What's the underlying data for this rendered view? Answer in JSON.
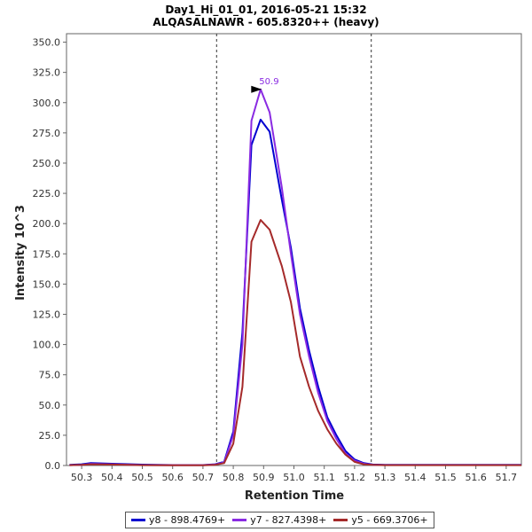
{
  "chart_data": {
    "type": "line",
    "title": "Day1_Hi_01_01, 2016-05-21 15:32",
    "subtitle": "ALQASALNAWR - 605.8320++ (heavy)",
    "xlabel": "Retention Time",
    "ylabel": "Intensity 10^3",
    "xlim": [
      50.25,
      51.75
    ],
    "ylim": [
      0,
      357
    ],
    "x_ticks": [
      "50.3",
      "50.4",
      "50.5",
      "50.6",
      "50.7",
      "50.8",
      "50.9",
      "51.0",
      "51.1",
      "51.2",
      "51.3",
      "51.4",
      "51.5",
      "51.6",
      "51.7"
    ],
    "y_ticks": [
      "0.0",
      "25.0",
      "50.0",
      "75.0",
      "100.0",
      "125.0",
      "150.0",
      "175.0",
      "200.0",
      "225.0",
      "250.0",
      "275.0",
      "300.0",
      "325.0",
      "350.0"
    ],
    "grid": false,
    "legend_position": "bottom",
    "boundaries": [
      50.745,
      51.255
    ],
    "peak_annotation": {
      "x": 50.9,
      "y": 311,
      "label": "50.9",
      "color": "#8a2be2"
    },
    "series": [
      {
        "name": "y8 - 898.4769+",
        "color": "#0000d0",
        "points": [
          [
            50.26,
            0.5
          ],
          [
            50.3,
            1
          ],
          [
            50.33,
            2
          ],
          [
            50.4,
            1.5
          ],
          [
            50.5,
            0.7
          ],
          [
            50.6,
            0.4
          ],
          [
            50.7,
            0.4
          ],
          [
            50.74,
            1
          ],
          [
            50.77,
            3
          ],
          [
            50.8,
            28
          ],
          [
            50.83,
            110
          ],
          [
            50.86,
            265
          ],
          [
            50.89,
            286
          ],
          [
            50.92,
            276
          ],
          [
            50.96,
            220
          ],
          [
            50.99,
            180
          ],
          [
            51.02,
            130
          ],
          [
            51.05,
            95
          ],
          [
            51.08,
            65
          ],
          [
            51.11,
            40
          ],
          [
            51.14,
            25
          ],
          [
            51.17,
            12
          ],
          [
            51.2,
            5
          ],
          [
            51.23,
            2
          ],
          [
            51.26,
            0.8
          ],
          [
            51.3,
            0.5
          ],
          [
            51.4,
            0.5
          ],
          [
            51.5,
            0.5
          ],
          [
            51.6,
            0.5
          ],
          [
            51.75,
            0.5
          ]
        ]
      },
      {
        "name": "y7 - 827.4398+",
        "color": "#8a2be2",
        "points": [
          [
            50.26,
            0.3
          ],
          [
            50.3,
            0.6
          ],
          [
            50.33,
            1.4
          ],
          [
            50.4,
            1
          ],
          [
            50.5,
            0.4
          ],
          [
            50.6,
            0.3
          ],
          [
            50.7,
            0.3
          ],
          [
            50.74,
            0.8
          ],
          [
            50.77,
            2.5
          ],
          [
            50.8,
            25
          ],
          [
            50.83,
            100
          ],
          [
            50.86,
            285
          ],
          [
            50.89,
            311
          ],
          [
            50.92,
            292
          ],
          [
            50.96,
            230
          ],
          [
            50.99,
            175
          ],
          [
            51.02,
            125
          ],
          [
            51.05,
            90
          ],
          [
            51.08,
            60
          ],
          [
            51.11,
            37
          ],
          [
            51.14,
            22
          ],
          [
            51.17,
            10
          ],
          [
            51.2,
            4
          ],
          [
            51.23,
            1.5
          ],
          [
            51.26,
            0.6
          ],
          [
            51.3,
            0.4
          ],
          [
            51.4,
            0.4
          ],
          [
            51.5,
            0.4
          ],
          [
            51.6,
            0.4
          ],
          [
            51.75,
            0.4
          ]
        ]
      },
      {
        "name": "y5 - 669.3706+",
        "color": "#a52a2a",
        "points": [
          [
            50.26,
            0.3
          ],
          [
            50.3,
            0.5
          ],
          [
            50.33,
            1
          ],
          [
            50.4,
            0.8
          ],
          [
            50.5,
            0.3
          ],
          [
            50.6,
            0.2
          ],
          [
            50.7,
            0.2
          ],
          [
            50.74,
            0.6
          ],
          [
            50.77,
            2
          ],
          [
            50.8,
            18
          ],
          [
            50.83,
            65
          ],
          [
            50.86,
            185
          ],
          [
            50.89,
            203
          ],
          [
            50.92,
            195
          ],
          [
            50.96,
            165
          ],
          [
            50.99,
            135
          ],
          [
            51.02,
            90
          ],
          [
            51.05,
            65
          ],
          [
            51.08,
            45
          ],
          [
            51.11,
            30
          ],
          [
            51.14,
            18
          ],
          [
            51.17,
            9
          ],
          [
            51.2,
            3
          ],
          [
            51.23,
            1
          ],
          [
            51.26,
            0.5
          ],
          [
            51.3,
            0.3
          ],
          [
            51.4,
            0.3
          ],
          [
            51.5,
            0.3
          ],
          [
            51.6,
            0.3
          ],
          [
            51.75,
            0.3
          ]
        ]
      }
    ]
  }
}
